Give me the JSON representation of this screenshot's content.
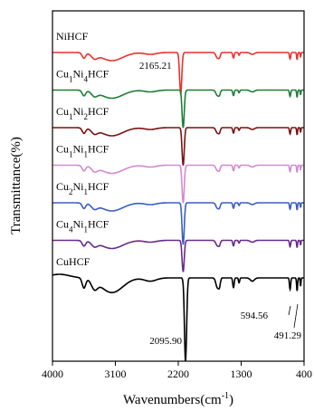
{
  "chart_data": {
    "type": "line",
    "title": "",
    "xlabel": "Wavenumbers(cm",
    "xlabel_sup": "-1",
    "xlabel_close": ")",
    "ylabel": "Transmittance(%)",
    "xlim": [
      4000,
      400
    ],
    "x_reversed": true,
    "xticks": [
      4000,
      3100,
      2200,
      1300,
      400
    ],
    "y_ticks_shown": false,
    "grid": false,
    "legend": "labels above each curve",
    "series": [
      {
        "label_parts": [
          {
            "t": "NiHCF",
            "sub": false
          }
        ],
        "color": "#e8322e",
        "offset": 0,
        "depth": 1.0
      },
      {
        "label_parts": [
          {
            "t": "Cu",
            "sub": false
          },
          {
            "t": "1",
            "sub": true
          },
          {
            "t": "Ni",
            "sub": false
          },
          {
            "t": "4",
            "sub": true
          },
          {
            "t": "HCF",
            "sub": false
          }
        ],
        "color": "#1e7f37",
        "offset": 1,
        "depth": 0.9
      },
      {
        "label_parts": [
          {
            "t": "Cu",
            "sub": false
          },
          {
            "t": "1",
            "sub": true
          },
          {
            "t": "Ni",
            "sub": false
          },
          {
            "t": "2",
            "sub": true
          },
          {
            "t": "HCF",
            "sub": false
          }
        ],
        "color": "#7a1414",
        "offset": 2,
        "depth": 0.9
      },
      {
        "label_parts": [
          {
            "t": "Cu",
            "sub": false
          },
          {
            "t": "1",
            "sub": true
          },
          {
            "t": "Ni",
            "sub": false
          },
          {
            "t": "1",
            "sub": true
          },
          {
            "t": "HCF",
            "sub": false
          }
        ],
        "color": "#d38ad3",
        "offset": 3,
        "depth": 0.9
      },
      {
        "label_parts": [
          {
            "t": "Cu",
            "sub": false
          },
          {
            "t": "2",
            "sub": true
          },
          {
            "t": "Ni",
            "sub": false
          },
          {
            "t": "1",
            "sub": true
          },
          {
            "t": "HCF",
            "sub": false
          }
        ],
        "color": "#3a5fc4",
        "offset": 4,
        "depth": 1.0
      },
      {
        "label_parts": [
          {
            "t": "Cu",
            "sub": false
          },
          {
            "t": "4",
            "sub": true
          },
          {
            "t": "Ni",
            "sub": false
          },
          {
            "t": "1",
            "sub": true
          },
          {
            "t": "HCF",
            "sub": false
          }
        ],
        "color": "#6a2a8a",
        "offset": 5,
        "depth": 0.75
      },
      {
        "label_parts": [
          {
            "t": "CuHCF",
            "sub": false
          }
        ],
        "color": "#000000",
        "offset": 6,
        "depth": 1.0
      }
    ],
    "annotations": [
      {
        "text": "2165.21",
        "x": 2165.21,
        "series": 0
      },
      {
        "text": "2095.90",
        "x": 2095.9,
        "series": 6
      },
      {
        "text": "594.56",
        "x": 594.56,
        "series": 6
      },
      {
        "text": "491.29",
        "x": 491.29,
        "series": 6
      }
    ]
  }
}
